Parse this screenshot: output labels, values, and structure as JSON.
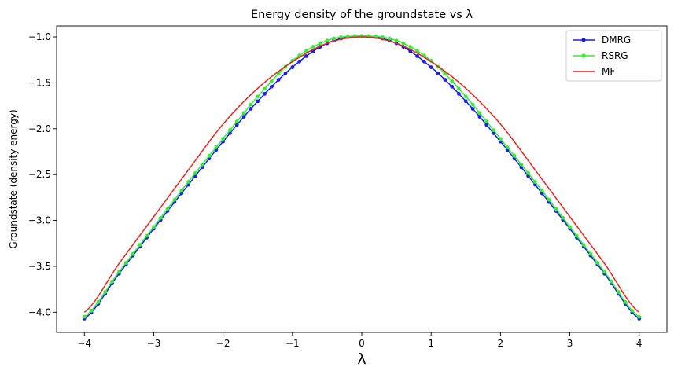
{
  "chart_data": {
    "type": "line",
    "title": "Energy density of the groundstate vs λ",
    "xlabel": "λ",
    "ylabel": "Groundstate (density energy)",
    "xlim": [
      -4.4,
      4.4
    ],
    "ylim": [
      -4.22,
      -0.88
    ],
    "x_ticks": [
      -4,
      -3,
      -2,
      -1,
      0,
      1,
      2,
      3,
      4
    ],
    "x_tick_labels": [
      "−4",
      "−3",
      "−2",
      "−1",
      "0",
      "1",
      "2",
      "3",
      "4"
    ],
    "y_ticks": [
      -1.0,
      -1.5,
      -2.0,
      -2.5,
      -3.0,
      -3.5,
      -4.0
    ],
    "y_tick_labels": [
      "−1.0",
      "−1.5",
      "−2.0",
      "−2.5",
      "−3.0",
      "−3.5",
      "−4.0"
    ],
    "grid": false,
    "legend_position": "top-right",
    "x": [
      -4.0,
      -3.5,
      -3.0,
      -2.5,
      -2.0,
      -1.5,
      -1.0,
      -0.5,
      0.0,
      0.5,
      1.0,
      1.5,
      2.0,
      2.5,
      3.0,
      3.5,
      4.0
    ],
    "series": [
      {
        "name": "DMRG",
        "color": "#1c1cf0",
        "marker": "dot",
        "values": [
          -4.07,
          -3.58,
          -3.09,
          -2.61,
          -2.14,
          -1.7,
          -1.33,
          -1.07,
          -0.99,
          -1.07,
          -1.33,
          -1.7,
          -2.14,
          -2.61,
          -3.09,
          -3.58,
          -4.07
        ]
      },
      {
        "name": "RSRG",
        "color": "#33ee33",
        "marker": "dot",
        "values": [
          -4.05,
          -3.56,
          -3.07,
          -2.58,
          -2.11,
          -1.65,
          -1.26,
          -1.04,
          -0.99,
          -1.04,
          -1.26,
          -1.65,
          -2.11,
          -2.58,
          -3.07,
          -3.56,
          -4.05
        ]
      },
      {
        "name": "MF",
        "color": "#e8231f",
        "marker": "none",
        "values": [
          -4.0,
          -3.47,
          -2.96,
          -2.45,
          -1.95,
          -1.56,
          -1.27,
          -1.07,
          -1.0,
          -1.07,
          -1.27,
          -1.56,
          -1.95,
          -2.45,
          -2.96,
          -3.47,
          -4.0
        ]
      }
    ]
  }
}
